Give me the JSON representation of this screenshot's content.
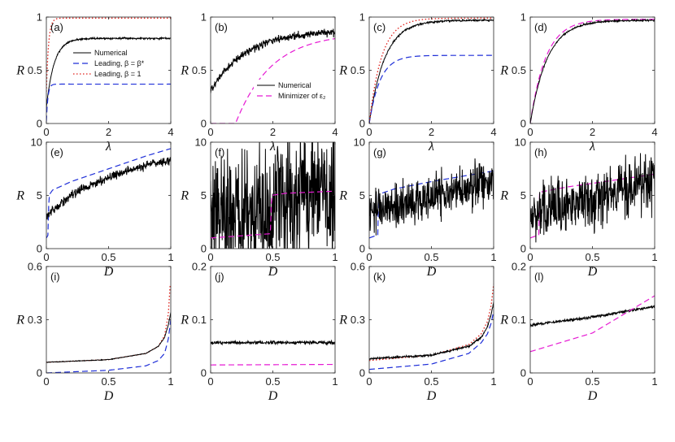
{
  "figure": {
    "legend_a": [
      "Numerical",
      "Leading, β = β*",
      "Leading, β = 1"
    ],
    "legend_b": [
      "Numerical",
      "Minimizer of ε₂"
    ]
  },
  "chart_data": [
    {
      "panel": "(a)",
      "type": "line",
      "xlabel": "λ",
      "ylabel": "R",
      "xlim": [
        0,
        4
      ],
      "ylim": [
        0,
        1
      ],
      "xticks": [
        {
          "v": 0,
          "t": "0"
        },
        {
          "v": 2,
          "t": "2"
        },
        {
          "v": 4,
          "t": "4"
        }
      ],
      "yticks": [
        {
          "v": 0,
          "t": "0"
        },
        {
          "v": 0.5,
          "t": "0.5"
        },
        {
          "v": 1,
          "t": "1"
        }
      ],
      "series": [
        {
          "name": "Numerical",
          "style": "numerical",
          "kind": "sat",
          "params": [
            0.8,
            0.25,
            0.15
          ],
          "noise": 0.012
        },
        {
          "name": "Leading, β = β*",
          "style": "blue",
          "kind": "sat",
          "params": [
            0.37,
            0.05,
            0.02
          ]
        },
        {
          "name": "Leading, β = 1",
          "style": "red",
          "kind": "sat",
          "params": [
            0.99,
            0.07,
            0.3
          ]
        }
      ]
    },
    {
      "panel": "(b)",
      "type": "line",
      "xlabel": "λ",
      "ylabel": "R",
      "xlim": [
        0,
        4
      ],
      "ylim": [
        0,
        1
      ],
      "xticks": [
        {
          "v": 0,
          "t": "0"
        },
        {
          "v": 2,
          "t": "2"
        },
        {
          "v": 4,
          "t": "4"
        }
      ],
      "yticks": [
        {
          "v": 0,
          "t": "0"
        },
        {
          "v": 0.5,
          "t": "0.5"
        },
        {
          "v": 1,
          "t": "1"
        }
      ],
      "series": [
        {
          "name": "Numerical",
          "style": "numerical",
          "kind": "sat2",
          "params": [
            0.87,
            0.3,
            1.1
          ],
          "noise": 0.05
        },
        {
          "name": "Minimizer of ε₂",
          "style": "magenta",
          "kind": "thr",
          "params": [
            0.85,
            0.8,
            1.15
          ]
        }
      ]
    },
    {
      "panel": "(c)",
      "type": "line",
      "xlabel": "λ",
      "ylabel": "R",
      "xlim": [
        0,
        4
      ],
      "ylim": [
        0,
        1
      ],
      "xticks": [
        {
          "v": 0,
          "t": "0"
        },
        {
          "v": 2,
          "t": "2"
        },
        {
          "v": 4,
          "t": "4"
        }
      ],
      "yticks": [
        {
          "v": 0,
          "t": "0"
        },
        {
          "v": 0.5,
          "t": "0.5"
        },
        {
          "v": 1,
          "t": "1"
        }
      ],
      "series": [
        {
          "name": "Numerical",
          "style": "numerical",
          "kind": "sat",
          "params": [
            0.97,
            0.5,
            0.0
          ],
          "noise": 0.012
        },
        {
          "name": "Leading, β = β*",
          "style": "blue",
          "kind": "sat",
          "params": [
            0.64,
            0.35,
            0.0
          ]
        },
        {
          "name": "Leading, β = 1",
          "style": "red",
          "kind": "sat",
          "params": [
            0.99,
            0.4,
            0.0
          ]
        }
      ]
    },
    {
      "panel": "(d)",
      "type": "line",
      "xlabel": "λ",
      "ylabel": "R",
      "xlim": [
        0,
        4
      ],
      "ylim": [
        0,
        1
      ],
      "xticks": [
        {
          "v": 0,
          "t": "0"
        },
        {
          "v": 2,
          "t": "2"
        },
        {
          "v": 4,
          "t": "4"
        }
      ],
      "yticks": [
        {
          "v": 0,
          "t": "0"
        },
        {
          "v": 0.5,
          "t": "0.5"
        },
        {
          "v": 1,
          "t": "1"
        }
      ],
      "series": [
        {
          "name": "Minimizer of ε₂",
          "style": "magenta",
          "kind": "sat",
          "params": [
            0.98,
            0.5,
            0.0
          ]
        },
        {
          "name": "Numerical",
          "style": "numerical",
          "kind": "sat",
          "params": [
            0.97,
            0.55,
            0.0
          ],
          "noise": 0.012
        }
      ]
    },
    {
      "panel": "(e)",
      "type": "line",
      "xlabel": "D",
      "ylabel": "R",
      "xlim": [
        0,
        1
      ],
      "ylim": [
        0,
        10
      ],
      "xticks": [
        {
          "v": 0,
          "t": "0"
        },
        {
          "v": 0.5,
          "t": "0.5"
        },
        {
          "v": 1,
          "t": "1"
        }
      ],
      "yticks": [
        {
          "v": 0,
          "t": "0"
        },
        {
          "v": 5,
          "t": "5"
        },
        {
          "v": 10,
          "t": "10"
        }
      ],
      "series": [
        {
          "name": "Leading",
          "style": "blue",
          "kind": "pw",
          "pts": [
            [
              0,
              1
            ],
            [
              0.015,
              1.3
            ],
            [
              0.02,
              5.0
            ],
            [
              0.05,
              5.5
            ],
            [
              0.2,
              6.3
            ],
            [
              0.4,
              7.1
            ],
            [
              0.6,
              7.9
            ],
            [
              0.8,
              8.7
            ],
            [
              1,
              9.4
            ]
          ]
        },
        {
          "name": "Numerical",
          "style": "numerical",
          "kind": "pw",
          "pts": [
            [
              0,
              3.0
            ],
            [
              0.05,
              3.6
            ],
            [
              0.1,
              4.1
            ],
            [
              0.2,
              5.0
            ],
            [
              0.3,
              5.7
            ],
            [
              0.4,
              6.2
            ],
            [
              0.5,
              6.7
            ],
            [
              0.6,
              7.1
            ],
            [
              0.7,
              7.5
            ],
            [
              0.8,
              7.8
            ],
            [
              0.9,
              8.1
            ],
            [
              1,
              8.3
            ]
          ],
          "noise": 0.06
        }
      ]
    },
    {
      "panel": "(f)",
      "type": "line",
      "xlabel": "D",
      "ylabel": "R",
      "xlim": [
        0,
        1
      ],
      "ylim": [
        0,
        10
      ],
      "xticks": [
        {
          "v": 0,
          "t": "0"
        },
        {
          "v": 0.5,
          "t": "0.5"
        },
        {
          "v": 1,
          "t": "1"
        }
      ],
      "yticks": [
        {
          "v": 0,
          "t": "0"
        },
        {
          "v": 5,
          "t": "5"
        },
        {
          "v": 10,
          "t": "10"
        }
      ],
      "series": [
        {
          "name": "Numerical",
          "style": "numerical",
          "kind": "pw",
          "pts": [
            [
              0,
              3.2
            ],
            [
              0.5,
              3.4
            ],
            [
              0.52,
              4.5
            ],
            [
              1,
              4.6
            ]
          ],
          "noise": 0.9
        },
        {
          "name": "Minimizer",
          "style": "magenta",
          "kind": "pw",
          "pts": [
            [
              0,
              1.0
            ],
            [
              0.48,
              1.4
            ],
            [
              0.49,
              5.0
            ],
            [
              0.6,
              5.2
            ],
            [
              1,
              5.4
            ]
          ]
        }
      ]
    },
    {
      "panel": "(g)",
      "type": "line",
      "xlabel": "D",
      "ylabel": "R",
      "xlim": [
        0,
        1
      ],
      "ylim": [
        0,
        10
      ],
      "xticks": [
        {
          "v": 0,
          "t": "0"
        },
        {
          "v": 0.5,
          "t": "0.5"
        },
        {
          "v": 1,
          "t": "1"
        }
      ],
      "yticks": [
        {
          "v": 0,
          "t": "0"
        },
        {
          "v": 5,
          "t": "5"
        },
        {
          "v": 10,
          "t": "10"
        }
      ],
      "series": [
        {
          "name": "Leading",
          "style": "blue",
          "kind": "pw",
          "pts": [
            [
              0,
              1.0
            ],
            [
              0.07,
              1.3
            ],
            [
              0.075,
              5.1
            ],
            [
              0.2,
              5.6
            ],
            [
              0.5,
              6.3
            ],
            [
              0.8,
              6.9
            ],
            [
              1,
              7.3
            ]
          ]
        },
        {
          "name": "Numerical",
          "style": "numerical",
          "kind": "pw",
          "pts": [
            [
              0,
              3.4
            ],
            [
              0.2,
              3.9
            ],
            [
              0.5,
              4.8
            ],
            [
              0.8,
              5.8
            ],
            [
              1,
              6.4
            ]
          ],
          "noise": 0.3
        }
      ]
    },
    {
      "panel": "(h)",
      "type": "line",
      "xlabel": "D",
      "ylabel": "R",
      "xlim": [
        0,
        1
      ],
      "ylim": [
        0,
        10
      ],
      "xticks": [
        {
          "v": 0,
          "t": "0"
        },
        {
          "v": 0.5,
          "t": "0.5"
        },
        {
          "v": 1,
          "t": "1"
        }
      ],
      "yticks": [
        {
          "v": 0,
          "t": "0"
        },
        {
          "v": 5,
          "t": "5"
        },
        {
          "v": 10,
          "t": "10"
        }
      ],
      "series": [
        {
          "name": "Minimizer",
          "style": "magenta",
          "kind": "pw",
          "pts": [
            [
              0,
              1.0
            ],
            [
              0.07,
              1.3
            ],
            [
              0.075,
              5.3
            ],
            [
              0.3,
              5.8
            ],
            [
              0.6,
              6.3
            ],
            [
              1,
              7.0
            ]
          ]
        },
        {
          "name": "Numerical",
          "style": "numerical",
          "kind": "pw",
          "pts": [
            [
              0,
              3.4
            ],
            [
              0.2,
              3.9
            ],
            [
              0.5,
              4.8
            ],
            [
              0.8,
              5.7
            ],
            [
              1,
              6.3
            ]
          ],
          "noise": 0.4
        }
      ]
    },
    {
      "panel": "(i)",
      "type": "line",
      "xlabel": "D",
      "ylabel": "R",
      "xlim": [
        0,
        1
      ],
      "ylim": [
        0,
        0.6
      ],
      "xticks": [
        {
          "v": 0,
          "t": "0"
        },
        {
          "v": 0.5,
          "t": "0.5"
        },
        {
          "v": 1,
          "t": "1"
        }
      ],
      "yticks": [
        {
          "v": 0,
          "t": "0"
        },
        {
          "v": 0.3,
          "t": "0.3"
        },
        {
          "v": 0.6,
          "t": "0.6"
        }
      ],
      "series": [
        {
          "name": "Leading, β = 1",
          "style": "red",
          "kind": "pw",
          "pts": [
            [
              0,
              0.06
            ],
            [
              0.5,
              0.075
            ],
            [
              0.8,
              0.11
            ],
            [
              0.9,
              0.15
            ],
            [
              0.95,
              0.21
            ],
            [
              0.98,
              0.33
            ],
            [
              0.995,
              0.5
            ]
          ]
        },
        {
          "name": "Leading, β = β*",
          "style": "blue",
          "kind": "pw",
          "pts": [
            [
              0,
              0.0
            ],
            [
              0.5,
              0.015
            ],
            [
              0.8,
              0.04
            ],
            [
              0.9,
              0.07
            ],
            [
              0.95,
              0.11
            ],
            [
              0.98,
              0.19
            ],
            [
              1,
              0.3
            ]
          ]
        },
        {
          "name": "Numerical",
          "style": "numerical",
          "kind": "pw",
          "pts": [
            [
              0,
              0.06
            ],
            [
              0.5,
              0.075
            ],
            [
              0.8,
              0.11
            ],
            [
              0.9,
              0.15
            ],
            [
              0.95,
              0.2
            ],
            [
              0.98,
              0.27
            ],
            [
              1,
              0.34
            ]
          ],
          "noise": 0.004
        }
      ]
    },
    {
      "panel": "(j)",
      "type": "line",
      "xlabel": "D",
      "ylabel": "R",
      "xlim": [
        0,
        1
      ],
      "ylim": [
        0,
        0.2
      ],
      "xticks": [
        {
          "v": 0,
          "t": "0"
        },
        {
          "v": 0.5,
          "t": "0.5"
        },
        {
          "v": 1,
          "t": "1"
        }
      ],
      "yticks": [
        {
          "v": 0,
          "t": "0"
        },
        {
          "v": 0.1,
          "t": "0.1"
        },
        {
          "v": 0.2,
          "t": "0.2"
        }
      ],
      "series": [
        {
          "name": "Numerical",
          "style": "numerical",
          "kind": "pw",
          "pts": [
            [
              0,
              0.057
            ],
            [
              1,
              0.057
            ]
          ],
          "noise": 0.022
        },
        {
          "name": "Minimizer",
          "style": "magenta",
          "kind": "pw",
          "pts": [
            [
              0,
              0.015
            ],
            [
              1,
              0.016
            ]
          ]
        }
      ]
    },
    {
      "panel": "(k)",
      "type": "line",
      "xlabel": "D",
      "ylabel": "R",
      "xlim": [
        0,
        1
      ],
      "ylim": [
        0,
        0.6
      ],
      "xticks": [
        {
          "v": 0,
          "t": "0"
        },
        {
          "v": 0.5,
          "t": "0.5"
        },
        {
          "v": 1,
          "t": "1"
        }
      ],
      "yticks": [
        {
          "v": 0,
          "t": "0"
        },
        {
          "v": 0.3,
          "t": "0.3"
        },
        {
          "v": 0.6,
          "t": "0.6"
        }
      ],
      "series": [
        {
          "name": "Leading, β = 1",
          "style": "red",
          "kind": "pw",
          "pts": [
            [
              0,
              0.07
            ],
            [
              0.5,
              0.1
            ],
            [
              0.8,
              0.16
            ],
            [
              0.9,
              0.22
            ],
            [
              0.95,
              0.29
            ],
            [
              0.98,
              0.38
            ],
            [
              1,
              0.5
            ]
          ]
        },
        {
          "name": "Leading, β = β*",
          "style": "blue",
          "kind": "pw",
          "pts": [
            [
              0,
              0.02
            ],
            [
              0.5,
              0.05
            ],
            [
              0.8,
              0.11
            ],
            [
              0.9,
              0.17
            ],
            [
              0.95,
              0.22
            ],
            [
              0.98,
              0.28
            ],
            [
              1,
              0.35
            ]
          ]
        },
        {
          "name": "Numerical",
          "style": "numerical",
          "kind": "pw",
          "pts": [
            [
              0,
              0.08
            ],
            [
              0.5,
              0.1
            ],
            [
              0.8,
              0.15
            ],
            [
              0.9,
              0.2
            ],
            [
              0.95,
              0.26
            ],
            [
              0.98,
              0.33
            ],
            [
              1,
              0.4
            ]
          ],
          "noise": 0.014
        }
      ]
    },
    {
      "panel": "(l)",
      "type": "line",
      "xlabel": "D",
      "ylabel": "R",
      "xlim": [
        0,
        1
      ],
      "ylim": [
        0,
        0.2
      ],
      "xticks": [
        {
          "v": 0,
          "t": "0"
        },
        {
          "v": 0.5,
          "t": "0.5"
        },
        {
          "v": 1,
          "t": "1"
        }
      ],
      "yticks": [
        {
          "v": 0,
          "t": "0"
        },
        {
          "v": 0.1,
          "t": "0.1"
        },
        {
          "v": 0.2,
          "t": "0.2"
        }
      ],
      "series": [
        {
          "name": "Numerical",
          "style": "numerical",
          "kind": "pw",
          "pts": [
            [
              0,
              0.09
            ],
            [
              0.5,
              0.105
            ],
            [
              1,
              0.125
            ]
          ],
          "noise": 0.018
        },
        {
          "name": "Minimizer",
          "style": "magenta",
          "kind": "pw",
          "pts": [
            [
              0,
              0.04
            ],
            [
              0.5,
              0.075
            ],
            [
              1,
              0.145
            ]
          ]
        }
      ]
    }
  ],
  "styles": {
    "numerical": {
      "color": "#000000",
      "dash": "",
      "width": 1.0
    },
    "blue": {
      "color": "#1f2fd8",
      "dash": "7,4",
      "width": 1.2
    },
    "red": {
      "color": "#e0201a",
      "dash": "1.5,2.5",
      "width": 1.3
    },
    "magenta": {
      "color": "#e61ad3",
      "dash": "7,4",
      "width": 1.2
    }
  }
}
